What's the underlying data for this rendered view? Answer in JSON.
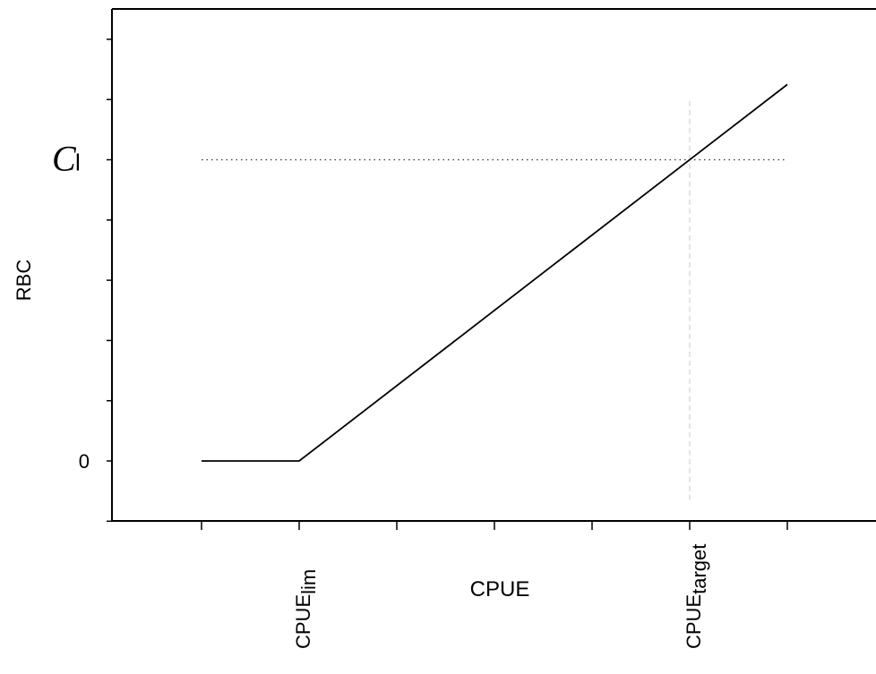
{
  "chart_data": {
    "type": "line",
    "title": "",
    "xlabel": "CPUE",
    "ylabel": "RBC",
    "x_ticks": [
      {
        "x": 0,
        "label": ""
      },
      {
        "x": 1,
        "label_main": "CPUE",
        "label_sub": "lim"
      },
      {
        "x": 2,
        "label": ""
      },
      {
        "x": 3,
        "label": ""
      },
      {
        "x": 4,
        "label": ""
      },
      {
        "x": 5,
        "label_main": "CPUE",
        "label_sub": "target"
      },
      {
        "x": 6,
        "label": ""
      }
    ],
    "y_ticks": [
      {
        "y": -1,
        "label": ""
      },
      {
        "y": 0,
        "label": "0"
      },
      {
        "y": 1,
        "label": ""
      },
      {
        "y": 2,
        "label": ""
      },
      {
        "y": 3,
        "label": ""
      },
      {
        "y": 4,
        "label": ""
      },
      {
        "y": 5,
        "label": "Cl"
      },
      {
        "y": 6,
        "label": ""
      },
      {
        "y": 7,
        "label": ""
      },
      {
        "y": 8,
        "label": ""
      }
    ],
    "xlim": [
      -1,
      6.8
    ],
    "ylim": [
      -1,
      7.5
    ],
    "series": [
      {
        "style": "solid",
        "x": [
          0,
          1,
          6
        ],
        "y": [
          0,
          0,
          6.25
        ]
      }
    ],
    "reference_lines": [
      {
        "orientation": "horizontal",
        "style": "dotted",
        "y": 5,
        "x_from": 0,
        "x_to": 6
      },
      {
        "orientation": "vertical",
        "style": "dashed",
        "x": 5,
        "y_from": -0.65,
        "y_to": 6.0
      }
    ],
    "grid": false,
    "legend": "none"
  }
}
